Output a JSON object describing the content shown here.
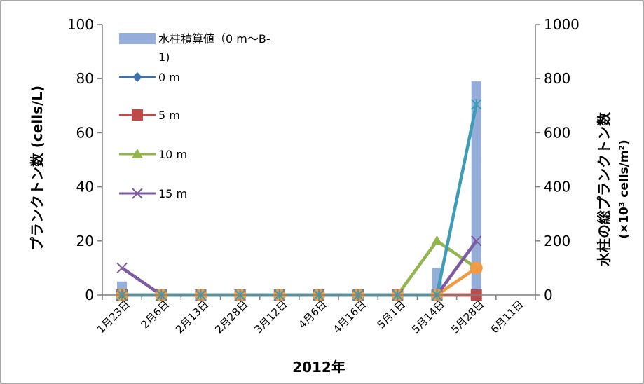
{
  "chart_data": {
    "type": "bar+line",
    "title": "",
    "xlabel": "2012年",
    "ylabel_left": "プランクトン数 (cells/L)",
    "ylabel_right_line1": "水柱の総プランクトン数",
    "ylabel_right_line2": "(×10³ cells/m²)",
    "ylim_left": [
      0,
      100
    ],
    "ylim_right": [
      0,
      1000
    ],
    "yticks_left": [
      "0",
      "20",
      "40",
      "60",
      "80",
      "100"
    ],
    "yticks_right": [
      "0",
      "200",
      "400",
      "600",
      "800",
      "1000"
    ],
    "categories": [
      "1月23日",
      "2月6日",
      "2月13日",
      "2月28日",
      "3月12日",
      "4月6日",
      "4月16日",
      "5月1日",
      "5月14日",
      "5月28日",
      "6月11日"
    ],
    "bar_series": {
      "name": "水柱積算値（0 m～B-1)",
      "axis": "right",
      "color": "#95ADD9",
      "values": [
        50,
        0,
        0,
        0,
        0,
        0,
        0,
        0,
        100,
        790,
        null
      ]
    },
    "series": [
      {
        "name": "0 m",
        "marker": "diamond",
        "color": "#3E70AE",
        "values": [
          0,
          0,
          0,
          0,
          0,
          0,
          0,
          0,
          0,
          0,
          null
        ]
      },
      {
        "name": "5 m",
        "marker": "square",
        "color": "#BE4B48",
        "values": [
          0,
          0,
          0,
          0,
          0,
          0,
          0,
          0,
          0,
          0,
          null
        ]
      },
      {
        "name": "10 m",
        "marker": "triangle",
        "color": "#92B54F",
        "values": [
          0,
          0,
          0,
          0,
          0,
          0,
          0,
          0,
          20,
          10,
          null
        ]
      },
      {
        "name": "15 m",
        "marker": "x",
        "color": "#7E5BA0",
        "values": [
          10,
          0,
          0,
          0,
          0,
          0,
          0,
          0,
          0,
          20,
          null
        ]
      },
      {
        "name": "",
        "marker": "star",
        "color": "#3E9CB5",
        "values": [
          0,
          0,
          0,
          0,
          0,
          0,
          0,
          0,
          0,
          70.5,
          null
        ]
      },
      {
        "name": "",
        "marker": "circle",
        "color": "#F19A44",
        "values": [
          0,
          0,
          0,
          0,
          0,
          0,
          0,
          0,
          0,
          10,
          null
        ]
      }
    ],
    "legend": {
      "placement": "top-left-inside",
      "bar_label_line1": "水柱積算値（0 m～B-",
      "bar_label_line2": "1)"
    },
    "grid": false
  }
}
